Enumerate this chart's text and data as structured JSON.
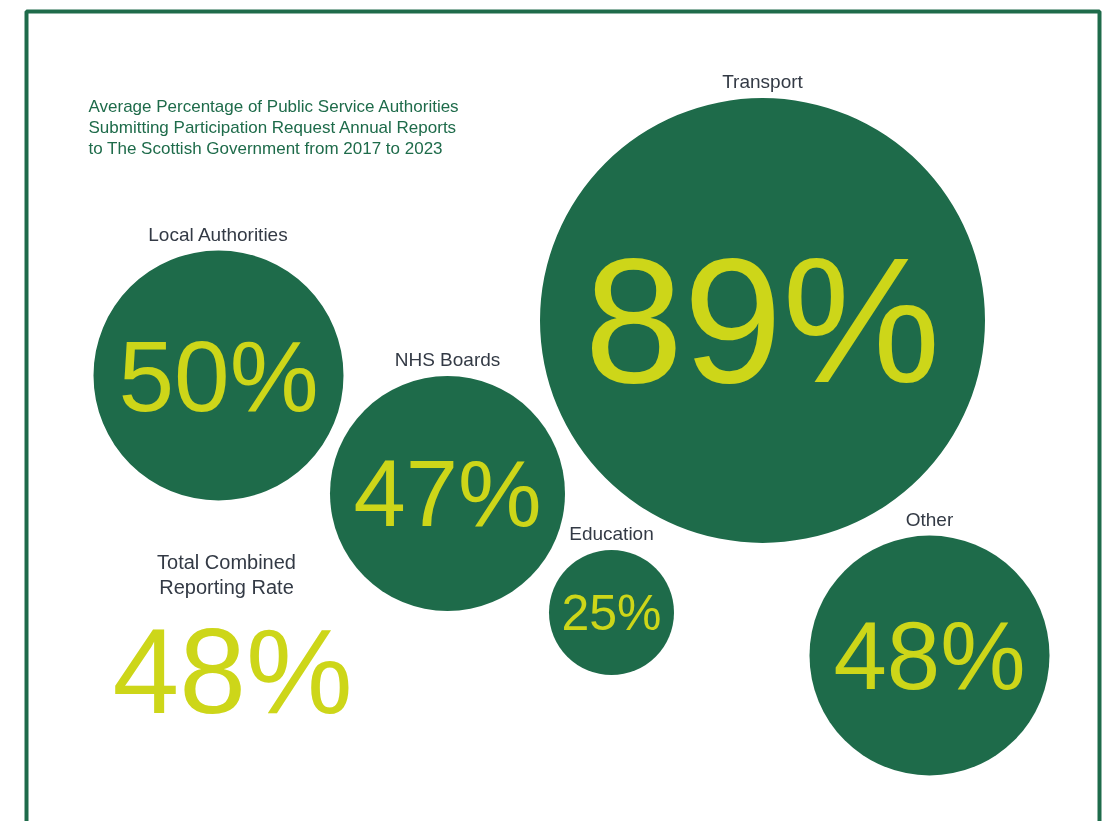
{
  "chart_data": {
    "type": "other",
    "title": "Average Percentage of Public Service Authorities\nSubmitting Participation Request Annual Reports\nto The Scottish Government from 2017 to 2023",
    "categories": [
      "Local Authorities",
      "NHS Boards",
      "Transport",
      "Education",
      "Other"
    ],
    "values": [
      50,
      47,
      89,
      25,
      48
    ],
    "value_labels": [
      "50%",
      "47%",
      "89%",
      "25%",
      "48%"
    ],
    "colors": [
      "#1e6b4a",
      "#1e6b4a",
      "#1e6b4a",
      "#1e6b4a",
      "#1e6b4a"
    ],
    "annotations": [
      "Total Combined\nReporting Rate",
      "48%"
    ]
  }
}
